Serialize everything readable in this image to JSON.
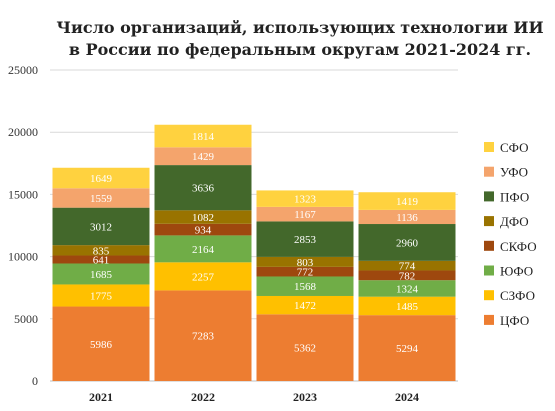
{
  "chart_data": {
    "type": "bar",
    "stacked": true,
    "title_lines": [
      "Число организаций, использующих технологии ИИ",
      "в России по федеральным округам 2021-2024 гг."
    ],
    "xlabel": "",
    "ylabel": "",
    "categories": [
      "2021",
      "2022",
      "2023",
      "2024"
    ],
    "ylim": [
      0,
      25000
    ],
    "yticks": [
      0,
      5000,
      10000,
      15000,
      20000,
      25000
    ],
    "grid": true,
    "legend_position": "right",
    "series": [
      {
        "name": "ЦФО",
        "color": "#ED7D31",
        "values": [
          5986,
          7283,
          5362,
          5294
        ]
      },
      {
        "name": "СЗФО",
        "color": "#FFC000",
        "values": [
          1775,
          2257,
          1472,
          1485
        ]
      },
      {
        "name": "ЮФО",
        "color": "#70AD47",
        "values": [
          1685,
          2164,
          1568,
          1324
        ]
      },
      {
        "name": "СКФО",
        "color": "#9E480E",
        "values": [
          641,
          934,
          772,
          782
        ]
      },
      {
        "name": "ДФО",
        "color": "#997300",
        "values": [
          835,
          1082,
          803,
          774
        ]
      },
      {
        "name": "ПФО",
        "color": "#43682B",
        "values": [
          3012,
          3636,
          2853,
          2960
        ]
      },
      {
        "name": "УФО",
        "color": "#F4A46C",
        "values": [
          1559,
          1429,
          1167,
          1136
        ]
      },
      {
        "name": "СФО",
        "color": "#FFD23F",
        "values": [
          1649,
          1814,
          1323,
          1419
        ]
      }
    ],
    "legend_order": [
      "СФО",
      "УФО",
      "ПФО",
      "ДФО",
      "СКФО",
      "ЮФО",
      "СЗФО",
      "ЦФО"
    ]
  }
}
